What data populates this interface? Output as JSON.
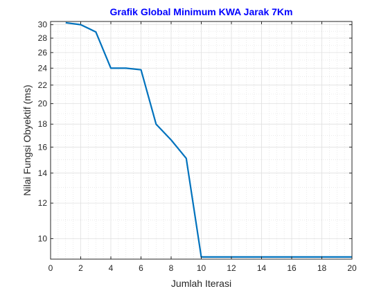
{
  "chart_data": {
    "type": "line",
    "title": "Grafik Global Minimum KWA Jarak 7Km",
    "xlabel": "Jumlah Iterasi",
    "ylabel": "Nilai Fungsi Obyektif (ms)",
    "xlim": [
      0,
      20
    ],
    "ylim": [
      9,
      30.5
    ],
    "y_scale": "log",
    "grid": true,
    "minor_grid": true,
    "x_ticks": [
      0,
      2,
      4,
      6,
      8,
      10,
      12,
      14,
      16,
      18,
      20
    ],
    "y_ticks": [
      10,
      12,
      14,
      16,
      18,
      20,
      22,
      24,
      26,
      28,
      30
    ],
    "series": [
      {
        "x": [
          1,
          2,
          3,
          4,
          5,
          6,
          7,
          8,
          9,
          10,
          11,
          12,
          13,
          14,
          15,
          16,
          17,
          18,
          19,
          20
        ],
        "values": [
          30.3,
          30.0,
          28.9,
          24.0,
          24.0,
          23.8,
          18.0,
          16.6,
          15.1,
          9.1,
          9.1,
          9.1,
          9.1,
          9.1,
          9.1,
          9.1,
          9.1,
          9.1,
          9.1,
          9.1
        ],
        "color": "#0072BD"
      }
    ],
    "colors": {
      "title": "#0000FF",
      "line": "#0072BD",
      "axes": "#262626"
    }
  }
}
